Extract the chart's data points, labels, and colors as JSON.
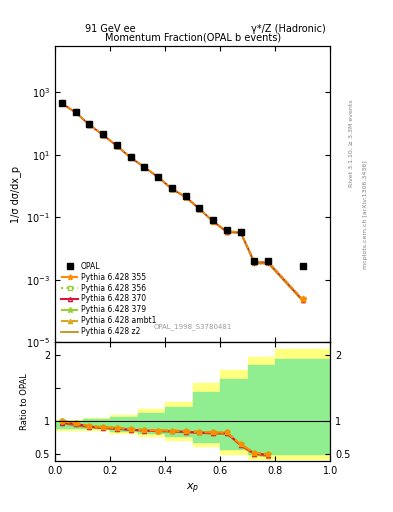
{
  "title_top_left": "91 GeV ee",
  "title_top_right": "γ*/Z (Hadronic)",
  "main_title": "Momentum Fraction(OPAL b events)",
  "xlabel": "$x_p$",
  "ylabel_main": "1/σ dσ/dx_p",
  "ylabel_ratio": "Ratio to OPAL",
  "watermark": "OPAL_1998_S3780481",
  "right_label1": "Rivet 3.1.10, ≥ 3.3M events",
  "right_label2": "mcplots.cern.ch [arXiv:1306.3436]",
  "xp": [
    0.025,
    0.075,
    0.125,
    0.175,
    0.225,
    0.275,
    0.325,
    0.375,
    0.425,
    0.475,
    0.525,
    0.575,
    0.625,
    0.675,
    0.725,
    0.775,
    0.9
  ],
  "data_y": [
    450,
    230,
    95,
    45,
    20,
    8.5,
    4.2,
    2.0,
    0.85,
    0.48,
    0.2,
    0.08,
    0.038,
    0.035,
    0.004,
    0.004,
    0.0028
  ],
  "data_yerr": [
    30,
    15,
    6,
    3,
    1.5,
    0.6,
    0.3,
    0.15,
    0.06,
    0.04,
    0.015,
    0.006,
    0.003,
    0.003,
    0.001,
    0.001,
    0.0005
  ],
  "py355_y": [
    445,
    228,
    93,
    44,
    19.5,
    8.3,
    4.1,
    1.95,
    0.83,
    0.46,
    0.19,
    0.075,
    0.036,
    0.034,
    0.0038,
    0.0038,
    0.00024
  ],
  "py356_y": [
    445,
    228,
    93,
    44,
    19.5,
    8.3,
    4.1,
    1.95,
    0.83,
    0.46,
    0.19,
    0.075,
    0.036,
    0.034,
    0.0038,
    0.0038,
    0.00024
  ],
  "py370_y": [
    440,
    225,
    92,
    43,
    19.2,
    8.2,
    4.05,
    1.92,
    0.82,
    0.45,
    0.188,
    0.074,
    0.035,
    0.033,
    0.0037,
    0.0037,
    0.00023
  ],
  "py379_y": [
    445,
    228,
    93,
    44,
    19.5,
    8.3,
    4.1,
    1.95,
    0.83,
    0.46,
    0.19,
    0.075,
    0.036,
    0.034,
    0.0038,
    0.0038,
    0.00024
  ],
  "pyambt1_y": [
    445,
    225,
    91,
    43,
    19.0,
    8.1,
    4.0,
    1.9,
    0.8,
    0.44,
    0.185,
    0.073,
    0.034,
    0.032,
    0.0035,
    0.0035,
    0.00022
  ],
  "pyz2_y": [
    435,
    222,
    90,
    42,
    18.8,
    8.0,
    3.95,
    1.88,
    0.79,
    0.43,
    0.183,
    0.072,
    0.033,
    0.031,
    0.0033,
    0.0033,
    0.00021
  ],
  "ratio_xp": [
    0.025,
    0.075,
    0.125,
    0.175,
    0.225,
    0.275,
    0.325,
    0.375,
    0.425,
    0.475,
    0.525,
    0.575,
    0.625,
    0.675,
    0.725,
    0.775
  ],
  "r355": [
    1.0,
    0.97,
    0.93,
    0.91,
    0.9,
    0.88,
    0.87,
    0.86,
    0.86,
    0.85,
    0.84,
    0.83,
    0.83,
    0.65,
    0.52,
    0.5
  ],
  "r356": [
    1.0,
    0.97,
    0.93,
    0.91,
    0.9,
    0.88,
    0.87,
    0.86,
    0.86,
    0.85,
    0.84,
    0.83,
    0.83,
    0.65,
    0.52,
    0.5
  ],
  "r370": [
    0.98,
    0.96,
    0.92,
    0.9,
    0.89,
    0.87,
    0.86,
    0.85,
    0.85,
    0.84,
    0.83,
    0.82,
    0.82,
    0.64,
    0.51,
    0.49
  ],
  "r379": [
    1.0,
    0.97,
    0.93,
    0.91,
    0.9,
    0.88,
    0.87,
    0.86,
    0.86,
    0.85,
    0.84,
    0.83,
    0.83,
    0.65,
    0.52,
    0.5
  ],
  "rambt1": [
    1.02,
    0.96,
    0.93,
    0.91,
    0.9,
    0.88,
    0.87,
    0.86,
    0.85,
    0.84,
    0.83,
    0.82,
    0.82,
    0.64,
    0.5,
    0.48
  ],
  "rz2": [
    0.97,
    0.93,
    0.91,
    0.89,
    0.88,
    0.87,
    0.86,
    0.85,
    0.84,
    0.83,
    0.82,
    0.81,
    0.81,
    0.63,
    0.49,
    0.47
  ],
  "band_edges": [
    0.0,
    0.1,
    0.2,
    0.3,
    0.4,
    0.5,
    0.6,
    0.7,
    0.8,
    1.0
  ],
  "band_yellow_lo": [
    0.87,
    0.87,
    0.82,
    0.78,
    0.72,
    0.62,
    0.5,
    0.42,
    0.42,
    0.42
  ],
  "band_yellow_hi": [
    1.02,
    1.05,
    1.1,
    1.18,
    1.3,
    1.58,
    1.78,
    1.98,
    2.1,
    2.1
  ],
  "band_green_lo": [
    0.9,
    0.9,
    0.86,
    0.82,
    0.77,
    0.68,
    0.58,
    0.5,
    0.5,
    0.5
  ],
  "band_green_hi": [
    1.01,
    1.03,
    1.07,
    1.13,
    1.22,
    1.45,
    1.65,
    1.85,
    1.95,
    1.95
  ],
  "color_355": "#ff8c00",
  "color_356": "#9acd32",
  "color_370": "#dc143c",
  "color_379": "#9acd32",
  "color_ambt1": "#daa520",
  "color_z2": "#b8860b",
  "color_band_yellow": "#ffff80",
  "color_band_green": "#90ee90",
  "ylim_main": [
    1e-05,
    30000.0
  ],
  "ylim_ratio": [
    0.4,
    2.2
  ],
  "xlim": [
    0.0,
    1.0
  ]
}
